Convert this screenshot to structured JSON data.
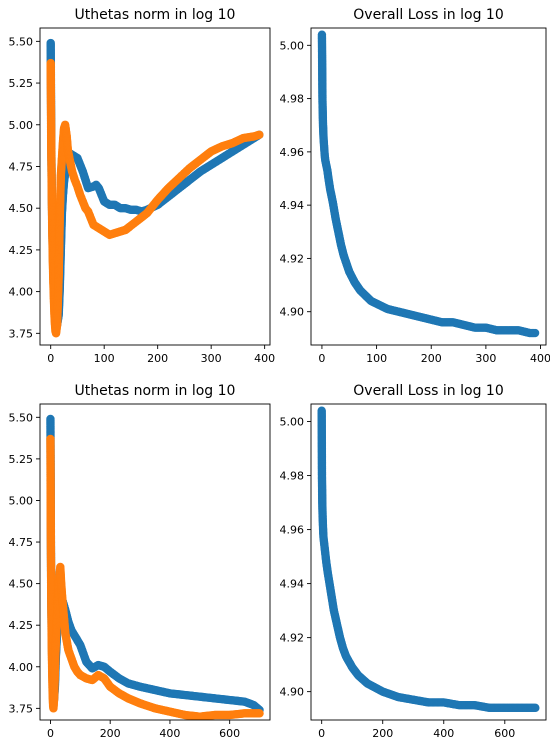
{
  "colors": {
    "series_blue": "#1f77b4",
    "series_orange": "#ff7f0e",
    "axis": "#000000",
    "background": "#ffffff"
  },
  "chart_data": [
    {
      "type": "scatter",
      "title": "Uthetas norm in log 10",
      "xlabel": "",
      "ylabel": "",
      "xlim": [
        -20,
        410
      ],
      "ylim": [
        3.68,
        5.58
      ],
      "xticks": [
        0,
        100,
        200,
        300,
        400
      ],
      "yticks": [
        3.75,
        4.0,
        4.25,
        4.5,
        4.75,
        5.0,
        5.25,
        5.5
      ],
      "ytick_format": 2,
      "legend": "none",
      "grid": false,
      "series": [
        {
          "color": "#1f77b4",
          "points": [
            [
              0,
              5.49
            ],
            [
              1,
              4.93
            ],
            [
              2,
              4.6
            ],
            [
              3,
              4.39
            ],
            [
              4,
              4.23
            ],
            [
              5,
              4.12
            ],
            [
              6,
              4.02
            ],
            [
              7,
              3.94
            ],
            [
              8,
              3.87
            ],
            [
              10,
              3.82
            ],
            [
              12,
              3.8
            ],
            [
              15,
              3.86
            ],
            [
              17,
              4.02
            ],
            [
              19,
              4.25
            ],
            [
              21,
              4.47
            ],
            [
              23,
              4.58
            ],
            [
              25,
              4.66
            ],
            [
              28,
              4.73
            ],
            [
              31,
              4.78
            ],
            [
              35,
              4.83
            ],
            [
              40,
              4.82
            ],
            [
              50,
              4.8
            ],
            [
              60,
              4.72
            ],
            [
              70,
              4.62
            ],
            [
              80,
              4.63
            ],
            [
              85,
              4.64
            ],
            [
              90,
              4.62
            ],
            [
              100,
              4.54
            ],
            [
              110,
              4.52
            ],
            [
              120,
              4.52
            ],
            [
              130,
              4.5
            ],
            [
              140,
              4.5
            ],
            [
              150,
              4.49
            ],
            [
              160,
              4.49
            ],
            [
              170,
              4.48
            ],
            [
              180,
              4.49
            ],
            [
              200,
              4.52
            ],
            [
              220,
              4.57
            ],
            [
              240,
              4.62
            ],
            [
              260,
              4.67
            ],
            [
              280,
              4.72
            ],
            [
              300,
              4.76
            ],
            [
              320,
              4.8
            ],
            [
              340,
              4.84
            ],
            [
              360,
              4.88
            ],
            [
              380,
              4.92
            ],
            [
              390,
              4.94
            ]
          ]
        },
        {
          "color": "#ff7f0e",
          "points": [
            [
              0,
              5.37
            ],
            [
              1,
              4.88
            ],
            [
              2,
              4.58
            ],
            [
              3,
              4.35
            ],
            [
              4,
              4.18
            ],
            [
              5,
              4.05
            ],
            [
              6,
              3.95
            ],
            [
              7,
              3.86
            ],
            [
              8,
              3.8
            ],
            [
              9,
              3.76
            ],
            [
              10,
              3.75
            ],
            [
              12,
              3.8
            ],
            [
              14,
              4.0
            ],
            [
              15,
              4.1
            ],
            [
              17,
              4.45
            ],
            [
              19,
              4.7
            ],
            [
              21,
              4.8
            ],
            [
              23,
              4.9
            ],
            [
              25,
              4.98
            ],
            [
              27,
              5.0
            ],
            [
              30,
              4.93
            ],
            [
              32,
              4.85
            ],
            [
              35,
              4.8
            ],
            [
              40,
              4.72
            ],
            [
              45,
              4.67
            ],
            [
              50,
              4.63
            ],
            [
              55,
              4.58
            ],
            [
              60,
              4.54
            ],
            [
              65,
              4.5
            ],
            [
              70,
              4.48
            ],
            [
              75,
              4.44
            ],
            [
              80,
              4.4
            ],
            [
              90,
              4.38
            ],
            [
              100,
              4.36
            ],
            [
              110,
              4.34
            ],
            [
              120,
              4.35
            ],
            [
              140,
              4.37
            ],
            [
              160,
              4.42
            ],
            [
              180,
              4.47
            ],
            [
              200,
              4.55
            ],
            [
              220,
              4.62
            ],
            [
              240,
              4.68
            ],
            [
              260,
              4.74
            ],
            [
              280,
              4.79
            ],
            [
              300,
              4.84
            ],
            [
              320,
              4.87
            ],
            [
              340,
              4.89
            ],
            [
              360,
              4.92
            ],
            [
              380,
              4.93
            ],
            [
              390,
              4.94
            ]
          ]
        }
      ]
    },
    {
      "type": "scatter",
      "title": "Overall Loss in log 10",
      "xlabel": "",
      "ylabel": "",
      "xlim": [
        -20,
        410
      ],
      "ylim": [
        4.8875,
        5.0065
      ],
      "xticks": [
        0,
        100,
        200,
        300,
        400
      ],
      "yticks": [
        4.9,
        4.92,
        4.94,
        4.96,
        4.98,
        5.0
      ],
      "ytick_format": 2,
      "legend": "none",
      "grid": false,
      "series": [
        {
          "color": "#1f77b4",
          "points": [
            [
              0,
              5.004
            ],
            [
              1,
              4.979
            ],
            [
              2,
              4.97
            ],
            [
              3,
              4.965
            ],
            [
              4,
              4.962
            ],
            [
              5,
              4.959
            ],
            [
              6,
              4.957
            ],
            [
              8,
              4.955
            ],
            [
              10,
              4.953
            ],
            [
              12,
              4.95
            ],
            [
              15,
              4.946
            ],
            [
              20,
              4.941
            ],
            [
              25,
              4.935
            ],
            [
              30,
              4.93
            ],
            [
              35,
              4.925
            ],
            [
              40,
              4.921
            ],
            [
              45,
              4.918
            ],
            [
              50,
              4.915
            ],
            [
              60,
              4.911
            ],
            [
              70,
              4.908
            ],
            [
              80,
              4.906
            ],
            [
              90,
              4.904
            ],
            [
              100,
              4.903
            ],
            [
              120,
              4.901
            ],
            [
              140,
              4.9
            ],
            [
              160,
              4.899
            ],
            [
              180,
              4.898
            ],
            [
              200,
              4.897
            ],
            [
              220,
              4.896
            ],
            [
              240,
              4.896
            ],
            [
              260,
              4.895
            ],
            [
              280,
              4.894
            ],
            [
              300,
              4.894
            ],
            [
              320,
              4.893
            ],
            [
              340,
              4.893
            ],
            [
              360,
              4.893
            ],
            [
              380,
              4.892
            ],
            [
              390,
              4.892
            ]
          ]
        }
      ]
    },
    {
      "type": "scatter",
      "title": "Uthetas norm in log 10",
      "xlabel": "",
      "ylabel": "",
      "xlim": [
        -35,
        735
      ],
      "ylim": [
        3.68,
        5.58
      ],
      "xticks": [
        0,
        200,
        400,
        600
      ],
      "yticks": [
        3.75,
        4.0,
        4.25,
        4.5,
        4.75,
        5.0,
        5.25,
        5.5
      ],
      "ytick_format": 2,
      "legend": "none",
      "grid": false,
      "series": [
        {
          "color": "#1f77b4",
          "points": [
            [
              0,
              5.49
            ],
            [
              1,
              4.93
            ],
            [
              2,
              4.6
            ],
            [
              3,
              4.39
            ],
            [
              4,
              4.23
            ],
            [
              5,
              4.12
            ],
            [
              6,
              4.02
            ],
            [
              7,
              3.94
            ],
            [
              8,
              3.87
            ],
            [
              10,
              3.82
            ],
            [
              12,
              3.8
            ],
            [
              15,
              3.88
            ],
            [
              18,
              4.05
            ],
            [
              22,
              4.2
            ],
            [
              26,
              4.32
            ],
            [
              30,
              4.36
            ],
            [
              35,
              4.39
            ],
            [
              40,
              4.4
            ],
            [
              50,
              4.34
            ],
            [
              60,
              4.27
            ],
            [
              70,
              4.22
            ],
            [
              80,
              4.19
            ],
            [
              100,
              4.13
            ],
            [
              120,
              4.03
            ],
            [
              140,
              3.99
            ],
            [
              160,
              4.01
            ],
            [
              180,
              4.0
            ],
            [
              200,
              3.97
            ],
            [
              230,
              3.93
            ],
            [
              260,
              3.9
            ],
            [
              300,
              3.88
            ],
            [
              350,
              3.86
            ],
            [
              400,
              3.84
            ],
            [
              450,
              3.83
            ],
            [
              500,
              3.82
            ],
            [
              550,
              3.81
            ],
            [
              600,
              3.8
            ],
            [
              650,
              3.79
            ],
            [
              680,
              3.77
            ],
            [
              700,
              3.74
            ]
          ]
        },
        {
          "color": "#ff7f0e",
          "points": [
            [
              0,
              5.37
            ],
            [
              1,
              4.88
            ],
            [
              2,
              4.58
            ],
            [
              3,
              4.35
            ],
            [
              4,
              4.18
            ],
            [
              5,
              4.05
            ],
            [
              6,
              3.95
            ],
            [
              7,
              3.86
            ],
            [
              8,
              3.8
            ],
            [
              9,
              3.76
            ],
            [
              10,
              3.75
            ],
            [
              12,
              3.8
            ],
            [
              15,
              3.98
            ],
            [
              18,
              4.15
            ],
            [
              22,
              4.3
            ],
            [
              26,
              4.42
            ],
            [
              30,
              4.55
            ],
            [
              33,
              4.6
            ],
            [
              36,
              4.5
            ],
            [
              40,
              4.4
            ],
            [
              45,
              4.3
            ],
            [
              50,
              4.2
            ],
            [
              60,
              4.1
            ],
            [
              70,
              4.05
            ],
            [
              80,
              4.0
            ],
            [
              90,
              3.97
            ],
            [
              100,
              3.95
            ],
            [
              120,
              3.93
            ],
            [
              140,
              3.92
            ],
            [
              160,
              3.95
            ],
            [
              180,
              3.93
            ],
            [
              200,
              3.88
            ],
            [
              230,
              3.84
            ],
            [
              260,
              3.81
            ],
            [
              300,
              3.78
            ],
            [
              350,
              3.75
            ],
            [
              400,
              3.73
            ],
            [
              450,
              3.71
            ],
            [
              500,
              3.7
            ],
            [
              550,
              3.71
            ],
            [
              600,
              3.71
            ],
            [
              650,
              3.72
            ],
            [
              700,
              3.72
            ]
          ]
        }
      ]
    },
    {
      "type": "scatter",
      "title": "Overall Loss in log 10",
      "xlabel": "",
      "ylabel": "",
      "xlim": [
        -35,
        735
      ],
      "ylim": [
        4.8895,
        5.0065
      ],
      "xticks": [
        0,
        200,
        400,
        600
      ],
      "yticks": [
        4.9,
        4.92,
        4.94,
        4.96,
        4.98,
        5.0
      ],
      "ytick_format": 2,
      "legend": "none",
      "grid": false,
      "series": [
        {
          "color": "#1f77b4",
          "points": [
            [
              0,
              5.004
            ],
            [
              1,
              4.979
            ],
            [
              2,
              4.97
            ],
            [
              3,
              4.965
            ],
            [
              4,
              4.962
            ],
            [
              5,
              4.959
            ],
            [
              6,
              4.957
            ],
            [
              8,
              4.955
            ],
            [
              10,
              4.953
            ],
            [
              15,
              4.948
            ],
            [
              20,
              4.944
            ],
            [
              30,
              4.937
            ],
            [
              40,
              4.93
            ],
            [
              50,
              4.925
            ],
            [
              60,
              4.92
            ],
            [
              70,
              4.916
            ],
            [
              80,
              4.913
            ],
            [
              100,
              4.909
            ],
            [
              120,
              4.906
            ],
            [
              150,
              4.903
            ],
            [
              200,
              4.9
            ],
            [
              250,
              4.898
            ],
            [
              300,
              4.897
            ],
            [
              350,
              4.896
            ],
            [
              400,
              4.896
            ],
            [
              450,
              4.895
            ],
            [
              500,
              4.895
            ],
            [
              550,
              4.894
            ],
            [
              600,
              4.894
            ],
            [
              650,
              4.894
            ],
            [
              700,
              4.894
            ]
          ]
        }
      ]
    }
  ]
}
